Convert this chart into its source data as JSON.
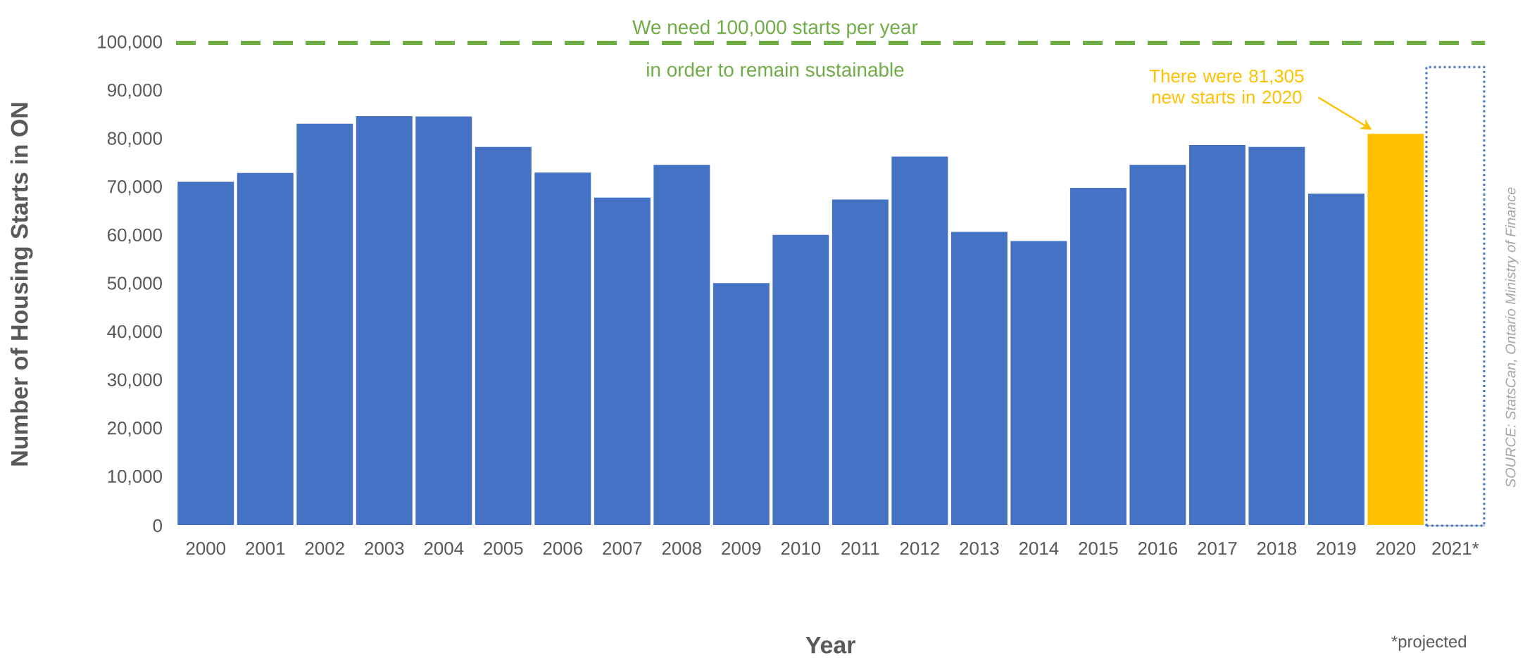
{
  "chart_data": {
    "type": "bar",
    "xlabel": "Year",
    "ylabel": "Number of Housing Starts in ON",
    "categories": [
      "2000",
      "2001",
      "2002",
      "2003",
      "2004",
      "2005",
      "2006",
      "2007",
      "2008",
      "2009",
      "2010",
      "2011",
      "2012",
      "2013",
      "2014",
      "2015",
      "2016",
      "2017",
      "2018",
      "2019",
      "2020",
      "2021*"
    ],
    "series": [
      {
        "values": [
          71400,
          73200,
          83400,
          85000,
          84900,
          78600,
          73300,
          68100,
          74900,
          50400,
          60400,
          67700,
          76600,
          61000,
          59100,
          70100,
          74900,
          79000,
          78600,
          68900,
          81305,
          null
        ],
        "colors": [
          "#4472c4",
          "#4472c4",
          "#4472c4",
          "#4472c4",
          "#4472c4",
          "#4472c4",
          "#4472c4",
          "#4472c4",
          "#4472c4",
          "#4472c4",
          "#4472c4",
          "#4472c4",
          "#4472c4",
          "#4472c4",
          "#4472c4",
          "#4472c4",
          "#4472c4",
          "#4472c4",
          "#4472c4",
          "#4472c4",
          "#ffc000",
          "#4472c4"
        ]
      },
      {
        "values": [
          null,
          null,
          null,
          null,
          null,
          null,
          null,
          null,
          null,
          null,
          null,
          null,
          null,
          null,
          null,
          null,
          null,
          null,
          null,
          null,
          null,
          95000
        ],
        "color": "#4472c4",
        "line_style": "dotted"
      }
    ],
    "ylim": [
      0,
      100000
    ],
    "yticks": [
      0,
      {
        "value": 10000,
        "label": "10,000"
      },
      {
        "value": 20000,
        "label": "20,000"
      },
      {
        "value": 30000,
        "label": "30,000"
      },
      {
        "value": 40000,
        "label": "40,000"
      },
      {
        "value": 50000,
        "label": "50,000"
      },
      {
        "value": 60000,
        "label": "60,000"
      },
      {
        "value": 70000,
        "label": "70,000"
      },
      {
        "value": 80000,
        "label": "80,000"
      },
      {
        "value": 90000,
        "label": "90,000"
      },
      {
        "value": 100000,
        "label": "100,000"
      }
    ],
    "ref_lines": [
      {
        "axis": "y",
        "value": 100000,
        "label": "We need 100,000 starts per year",
        "color": "#70ad47",
        "line_style": "dashed"
      }
    ],
    "annotations": [
      "There were 81,305 new starts in 2020",
      "in order to remain sustainable",
      "SOURCE: StatsCan, Ontario Ministry of Finance",
      "*projected"
    ]
  }
}
